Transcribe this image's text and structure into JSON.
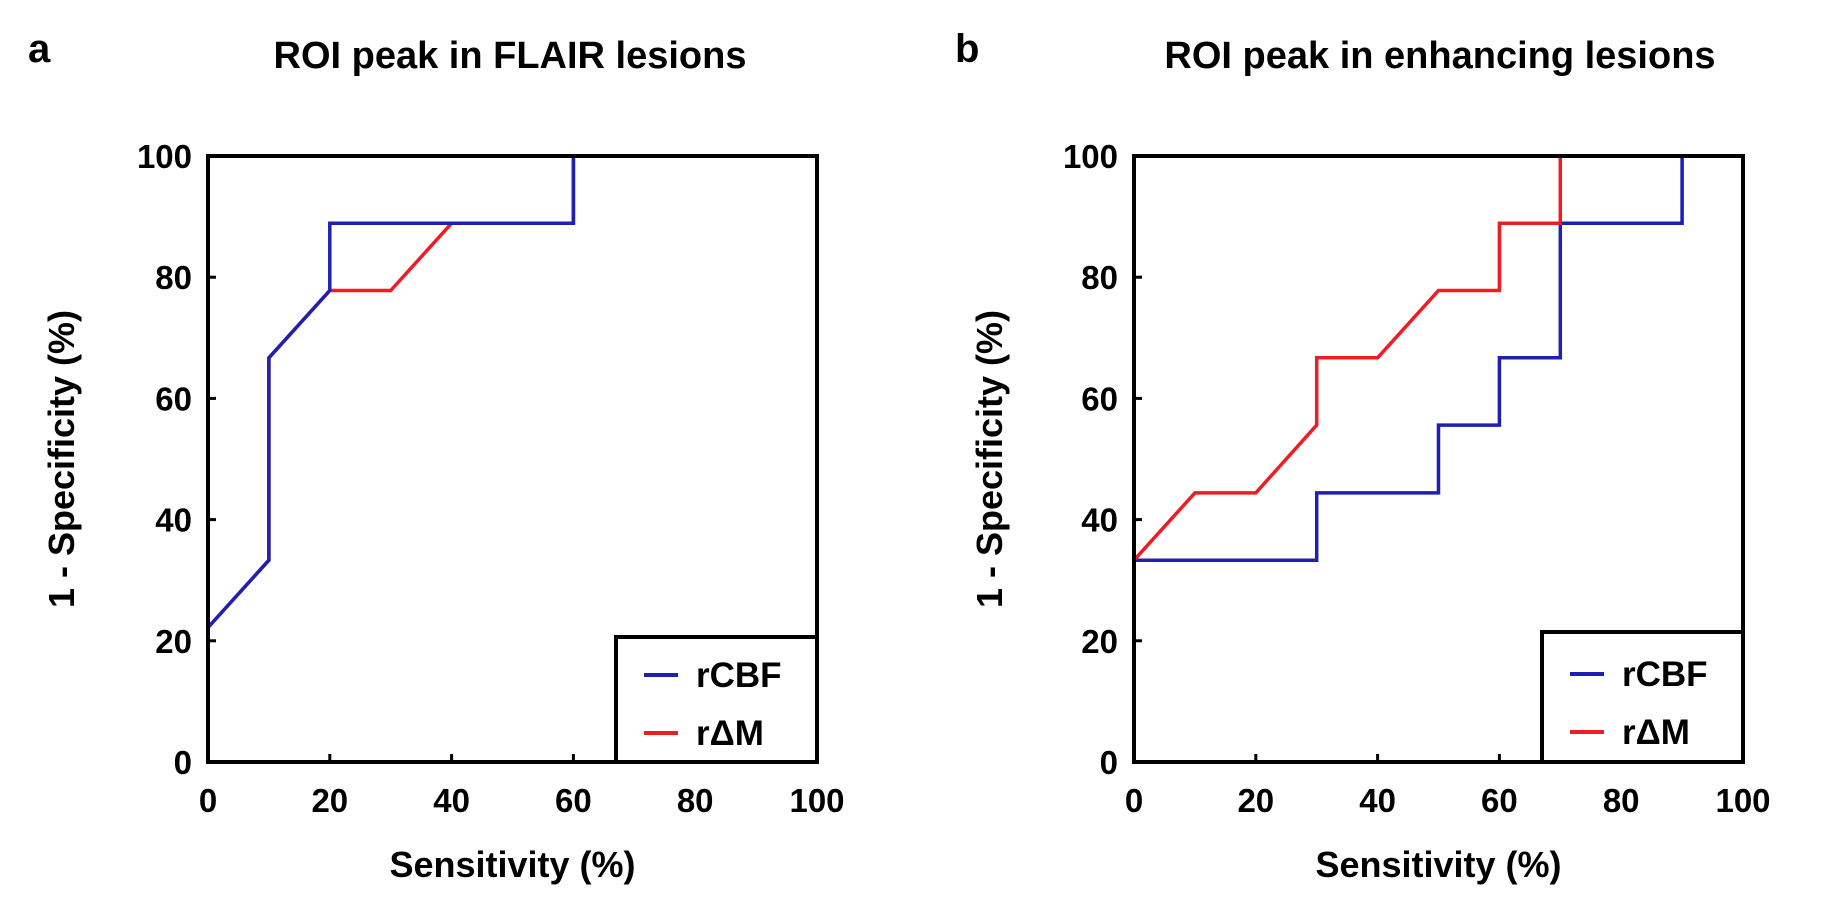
{
  "chart_data": [
    {
      "type": "line",
      "panel": "a",
      "title": "ROI peak in FLAIR lesions",
      "xlabel": "Sensitivity (%)",
      "ylabel": "1 - Specificity (%)",
      "xlim": [
        0,
        100
      ],
      "ylim": [
        0,
        100
      ],
      "xticks": [
        "0",
        "20",
        "40",
        "60",
        "80",
        "100"
      ],
      "yticks": [
        "0",
        "20",
        "40",
        "60",
        "80",
        "100"
      ],
      "legend_position": "bottom-right",
      "series": [
        {
          "name": "rΔM",
          "color": "#ee1c24",
          "x": [
            0,
            0,
            10,
            10,
            20,
            30,
            40,
            60,
            60,
            100
          ],
          "y": [
            0,
            22.2,
            33.3,
            66.7,
            77.8,
            77.8,
            88.9,
            88.9,
            100,
            100
          ]
        },
        {
          "name": "rCBF",
          "color": "#1f1fb4",
          "x": [
            0,
            0,
            10,
            10,
            20,
            20,
            60,
            60,
            100
          ],
          "y": [
            0,
            22.2,
            33.3,
            66.7,
            77.8,
            88.9,
            88.9,
            100,
            100
          ]
        }
      ]
    },
    {
      "type": "line",
      "panel": "b",
      "title": "ROI peak in enhancing lesions",
      "xlabel": "Sensitivity (%)",
      "ylabel": "1 - Specificity (%)",
      "xlim": [
        0,
        100
      ],
      "ylim": [
        0,
        100
      ],
      "xticks": [
        "0",
        "20",
        "40",
        "60",
        "80",
        "100"
      ],
      "yticks": [
        "0",
        "20",
        "40",
        "60",
        "80",
        "100"
      ],
      "legend_position": "bottom-right",
      "series": [
        {
          "name": "rCBF",
          "color": "#1f1fb4",
          "x": [
            0,
            0,
            30,
            30,
            50,
            50,
            60,
            60,
            70,
            70,
            90,
            90,
            100
          ],
          "y": [
            0,
            33.3,
            33.3,
            44.4,
            44.4,
            55.6,
            55.6,
            66.7,
            66.7,
            88.9,
            88.9,
            100,
            100
          ]
        },
        {
          "name": "rΔM",
          "color": "#ee1c24",
          "x": [
            0,
            0,
            10,
            20,
            30,
            30,
            40,
            50,
            60,
            60,
            70,
            70,
            100
          ],
          "y": [
            0,
            33.3,
            44.4,
            44.4,
            55.6,
            66.7,
            66.7,
            77.8,
            77.8,
            88.9,
            88.9,
            100,
            100
          ]
        }
      ]
    }
  ]
}
